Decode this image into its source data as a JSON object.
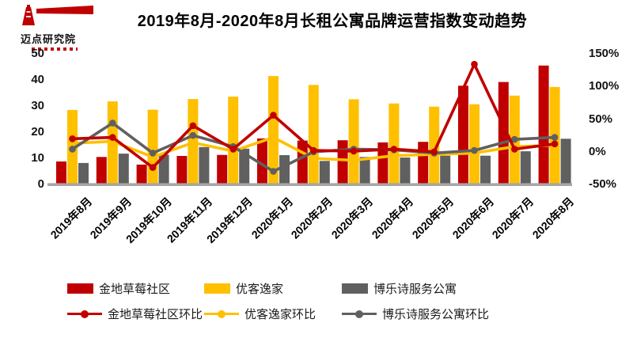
{
  "logo": {
    "name": "迈点研究院"
  },
  "title": "2019年8月-2020年8月长租公寓品牌运营指数变动趋势",
  "colors": {
    "red": "#c00000",
    "yellow": "#ffc000",
    "gray": "#606060",
    "axis_line": "#a6a6a6",
    "text": "#000000"
  },
  "chart_data": {
    "type": "bar",
    "subtype": "grouped bars with month-over-month percent lines on secondary axis",
    "title": "2019年8月-2020年8月长租公寓品牌运营指数变动趋势",
    "categories": [
      "2019年8月",
      "2019年9月",
      "2019年10月",
      "2019年11月",
      "2019年12月",
      "2020年1月",
      "2020年2月",
      "2020年3月",
      "2020年4月",
      "2020年5月",
      "2020年6月",
      "2020年7月",
      "2020年8月"
    ],
    "bar_series": [
      {
        "name": "金地草莓社区",
        "color_key": "red",
        "values": [
          8.8,
          10.5,
          7.6,
          10.9,
          11.3,
          17.6,
          16.8,
          16.9,
          16.1,
          16.3,
          37.8,
          39.2,
          45.5
        ]
      },
      {
        "name": "优客逸家",
        "color_key": "yellow",
        "values": [
          28.5,
          31.8,
          28.6,
          32.7,
          33.6,
          41.5,
          38.1,
          32.6,
          31.0,
          29.8,
          30.7,
          34.0,
          37.3
        ]
      },
      {
        "name": "博乐诗服务公寓",
        "color_key": "gray",
        "values": [
          8.2,
          11.8,
          11.4,
          14.3,
          13.7,
          11.2,
          9.0,
          10.5,
          10.3,
          11.0,
          11.0,
          12.7,
          17.5
        ]
      }
    ],
    "line_series": [
      {
        "name": "金地草莓社区环比",
        "color_key": "red",
        "values_pct": [
          20,
          22,
          -24,
          40,
          4,
          56,
          2,
          1,
          4,
          0,
          134,
          4,
          12
        ]
      },
      {
        "name": "优客逸家环比",
        "color_key": "yellow",
        "values_pct": [
          13,
          16,
          -8,
          14,
          1,
          22,
          -10,
          -13,
          -6,
          -4,
          -2,
          8,
          10
        ]
      },
      {
        "name": "博乐诗服务公寓环比",
        "color_key": "gray",
        "values_pct": [
          4,
          44,
          -2,
          25,
          8,
          -30,
          0,
          4,
          3,
          -2,
          2,
          19,
          22
        ]
      }
    ],
    "y_left": {
      "ticks": [
        0,
        10,
        20,
        30,
        40,
        50
      ],
      "range": [
        0,
        50
      ]
    },
    "y_right": {
      "tick_labels": [
        "-50%",
        "0%",
        "50%",
        "100%",
        "150%"
      ],
      "tick_values": [
        -50,
        0,
        50,
        100,
        150
      ],
      "range_pct": [
        -50,
        150
      ]
    },
    "grid": false,
    "legend_position": "bottom"
  }
}
